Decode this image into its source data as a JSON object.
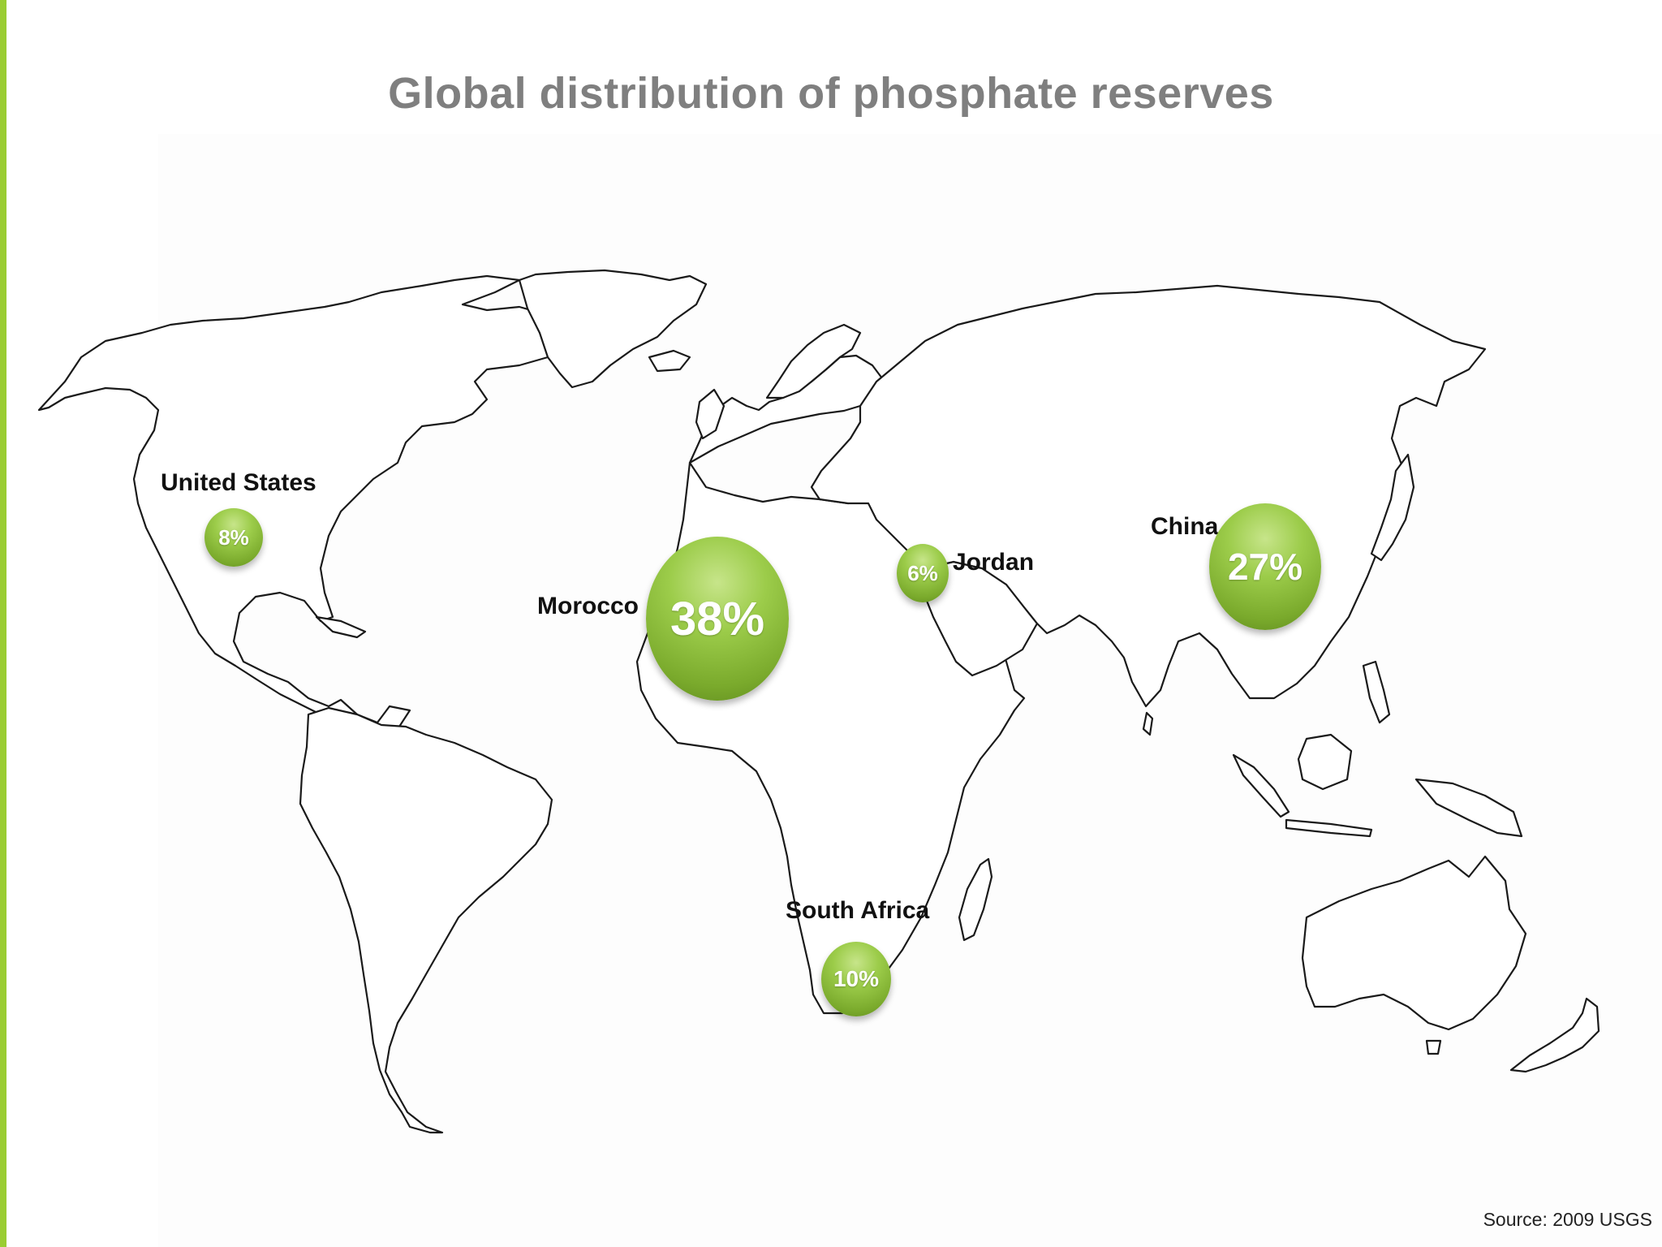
{
  "title": "Global distribution of phosphate reserves",
  "source": "Source: 2009 USGS",
  "colors": {
    "accent": "#9acd32",
    "bubble": "#8cc13f",
    "title": "#7f7f7f"
  },
  "markers": [
    {
      "country": "United States",
      "percent": "8%",
      "share": 8
    },
    {
      "country": "Morocco",
      "percent": "38%",
      "share": 38
    },
    {
      "country": "Jordan",
      "percent": "6%",
      "share": 6
    },
    {
      "country": "China",
      "percent": "27%",
      "share": 27
    },
    {
      "country": "South Africa",
      "percent": "10%",
      "share": 10
    }
  ]
}
